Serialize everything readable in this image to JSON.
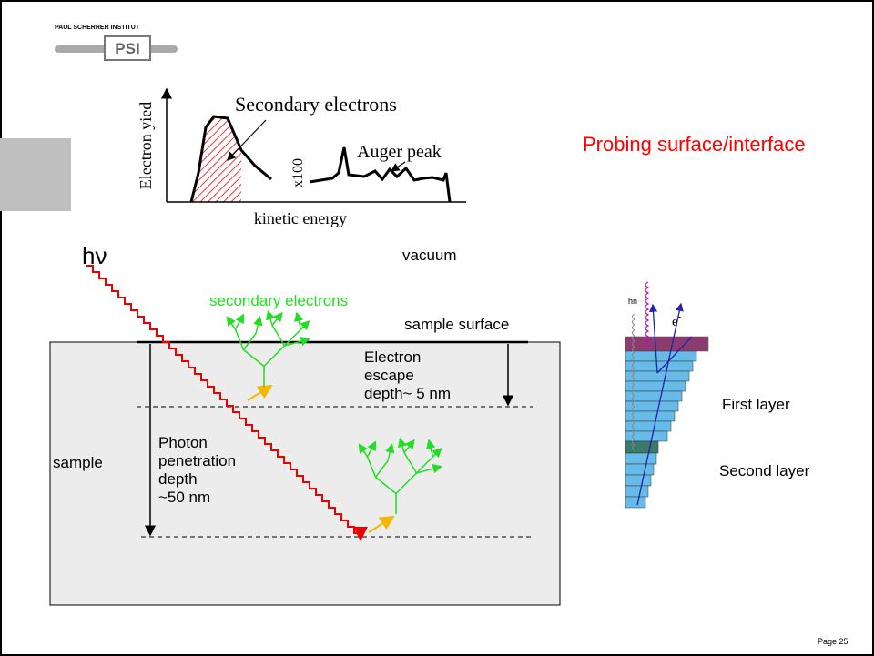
{
  "logo": {
    "institute": "PAUL SCHERRER INSTITUT",
    "mark": "PSI"
  },
  "spectrum": {
    "secondary_label": "Secondary electrons",
    "y_axis_label": "Electron yied",
    "scale_label": "x100",
    "auger_label": "Auger peak",
    "x_axis_label": "kinetic energy"
  },
  "title": "Probing surface/interface",
  "photon": "hν",
  "vacuum": "vacuum",
  "secondary_electrons": "secondary electrons",
  "sample_surface": "sample surface",
  "escape_depth": [
    "Electron",
    "escape",
    "depth~  5 nm"
  ],
  "penetration_depth": [
    "Photon",
    "penetration",
    "depth",
    " ~50 nm"
  ],
  "sample": "sample",
  "layers": {
    "photon": "hn",
    "electron": "e",
    "electron_charge": "-",
    "first": "First layer",
    "second": "Second layer"
  },
  "footer": {
    "page": "Page 25"
  }
}
